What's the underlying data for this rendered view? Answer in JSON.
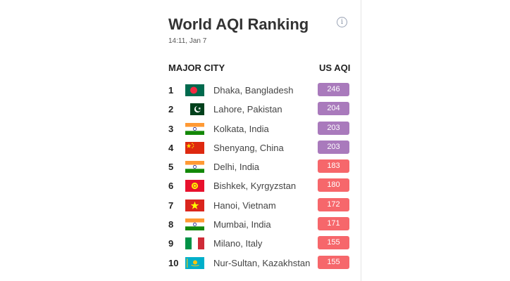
{
  "title": "World AQI Ranking",
  "timestamp": "14:11, Jan 7",
  "headers": {
    "city": "MAJOR CITY",
    "aqi": "US AQI"
  },
  "colors": {
    "very_unhealthy": "#a97abc",
    "unhealthy": "#f6676b"
  },
  "rows": [
    {
      "rank": "1",
      "flag": "bangladesh-flag-icon",
      "city": "Dhaka, Bangladesh",
      "aqi": "246",
      "level": "very_unhealthy"
    },
    {
      "rank": "2",
      "flag": "pakistan-flag-icon",
      "city": "Lahore, Pakistan",
      "aqi": "204",
      "level": "very_unhealthy"
    },
    {
      "rank": "3",
      "flag": "india-flag-icon",
      "city": "Kolkata, India",
      "aqi": "203",
      "level": "very_unhealthy"
    },
    {
      "rank": "4",
      "flag": "china-flag-icon",
      "city": "Shenyang, China",
      "aqi": "203",
      "level": "very_unhealthy"
    },
    {
      "rank": "5",
      "flag": "india-flag-icon",
      "city": "Delhi, India",
      "aqi": "183",
      "level": "unhealthy"
    },
    {
      "rank": "6",
      "flag": "kyrgyzstan-flag-icon",
      "city": "Bishkek, Kyrgyzstan",
      "aqi": "180",
      "level": "unhealthy"
    },
    {
      "rank": "7",
      "flag": "vietnam-flag-icon",
      "city": "Hanoi, Vietnam",
      "aqi": "172",
      "level": "unhealthy"
    },
    {
      "rank": "8",
      "flag": "india-flag-icon",
      "city": "Mumbai, India",
      "aqi": "171",
      "level": "unhealthy"
    },
    {
      "rank": "9",
      "flag": "italy-flag-icon",
      "city": "Milano, Italy",
      "aqi": "155",
      "level": "unhealthy"
    },
    {
      "rank": "10",
      "flag": "kazakhstan-flag-icon",
      "city": "Nur-Sultan, Kazakhstan",
      "aqi": "155",
      "level": "unhealthy"
    }
  ]
}
